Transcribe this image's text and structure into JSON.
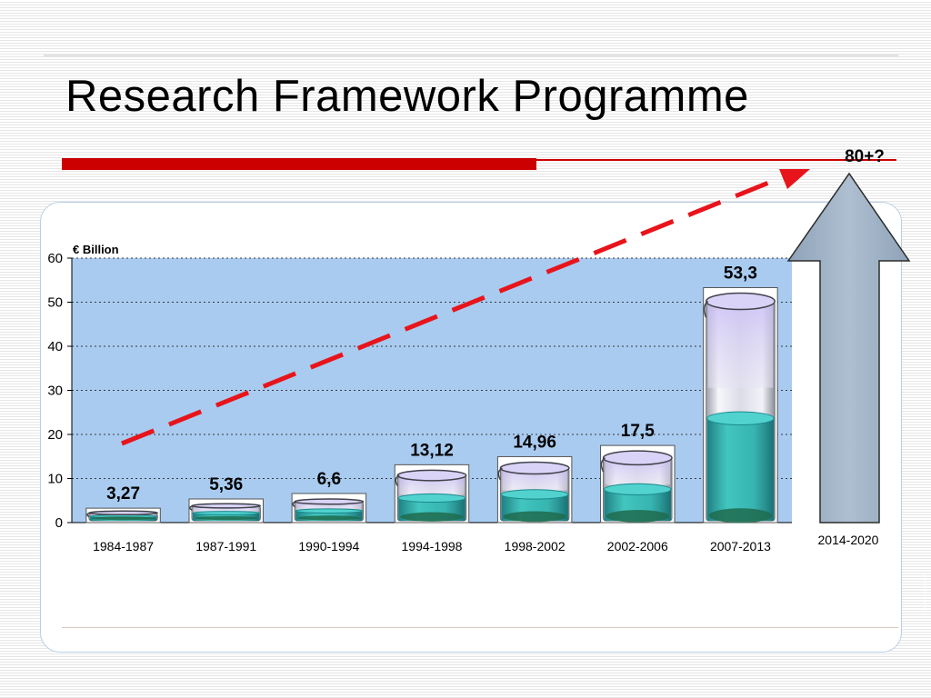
{
  "slide": {
    "title": "Research Framework Programme"
  },
  "forecast": {
    "label": "80+?",
    "period": "2014-2020"
  },
  "chart_data": {
    "type": "bar",
    "unit_label": "€ Billion",
    "title": "",
    "xlabel": "",
    "ylabel": "€ Billion",
    "ylim": [
      0,
      60
    ],
    "yticks": [
      0,
      10,
      20,
      30,
      40,
      50,
      60
    ],
    "grid": true,
    "categories": [
      "1984-1987",
      "1987-1991",
      "1990-1994",
      "1994-1998",
      "1998-2002",
      "2002-2006",
      "2007-2013"
    ],
    "values": [
      3.27,
      5.36,
      6.6,
      13.12,
      14.96,
      17.5,
      53.3
    ],
    "value_labels": [
      "3,27",
      "5,36",
      "6,6",
      "13,12",
      "14,96",
      "17,5",
      "53,3"
    ],
    "colors": {
      "plot_background": "#a9cbf0",
      "trend_arrow": "#e8141b",
      "liquid": "#2ab5b0",
      "beaker_glass": "#e3e3ee",
      "beaker_tint": "#cbc3f3",
      "forecast_arrow": "#a2b4c8",
      "title_bar": "#cc0000"
    }
  }
}
